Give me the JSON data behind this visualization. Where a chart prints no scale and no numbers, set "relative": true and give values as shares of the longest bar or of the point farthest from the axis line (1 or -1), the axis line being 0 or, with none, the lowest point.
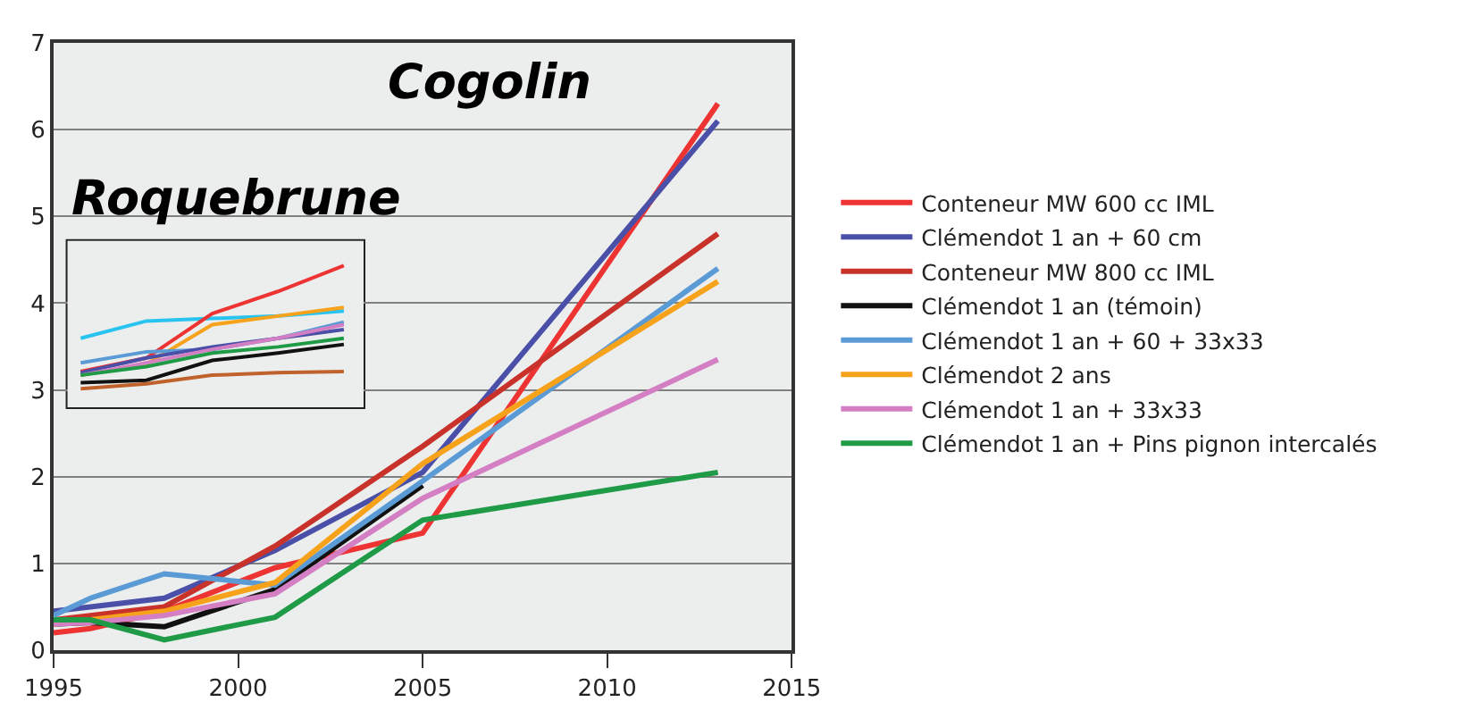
{
  "chart_data": [
    {
      "type": "line",
      "title": "Cogolin",
      "x": [
        1995,
        1996,
        1998,
        2001,
        2005,
        2013
      ],
      "xlim": [
        1995,
        2015
      ],
      "xticks": [
        1995,
        2000,
        2005,
        2010,
        2015
      ],
      "ylim": [
        0,
        7
      ],
      "yticks": [
        0,
        1,
        2,
        3,
        4,
        5,
        6,
        7
      ],
      "grid": "y",
      "legend": "right",
      "series": [
        {
          "name": "Conteneur MW 600 cc IML",
          "color": "#ee3333",
          "values": [
            0.2,
            0.25,
            0.45,
            0.95,
            1.35,
            6.3
          ]
        },
        {
          "name": "Clémendot 1 an + 60 cm",
          "color": "#4a4fa8",
          "values": [
            0.45,
            0.5,
            0.6,
            1.15,
            2.05,
            6.1
          ]
        },
        {
          "name": "Conteneur MW 800 cc IML",
          "color": "#c8322a",
          "values": [
            0.35,
            0.4,
            0.5,
            1.2,
            2.35,
            4.8
          ]
        },
        {
          "name": "Clémendot 1 an (témoin)",
          "color": "#111111",
          "values": [
            0.3,
            0.32,
            0.27,
            0.7,
            1.9,
            null
          ]
        },
        {
          "name": "Clémendot 1 an + 60 + 33x33",
          "color": "#5b9bd5",
          "values": [
            0.4,
            0.6,
            0.88,
            0.75,
            1.95,
            4.4
          ]
        },
        {
          "name": "Clémendot 2 ans",
          "color": "#f7a21b",
          "values": [
            0.3,
            0.35,
            0.45,
            0.78,
            2.15,
            4.25
          ]
        },
        {
          "name": "Clémendot 1 an + 33x33",
          "color": "#d47fc4",
          "values": [
            0.3,
            0.32,
            0.4,
            0.65,
            1.75,
            3.35
          ]
        },
        {
          "name": "Clémendot 1 an + Pins pignon intercalés",
          "color": "#1f9a46",
          "values": [
            0.35,
            0.35,
            0.12,
            0.38,
            1.5,
            2.05
          ]
        }
      ]
    },
    {
      "type": "line",
      "title": "Roquebrune",
      "relative": true,
      "categories": [
        null,
        null,
        null,
        null,
        null
      ],
      "series": [
        {
          "color": "#29c3f0",
          "values": [
            0.41,
            0.55,
            0.57,
            0.59,
            0.63
          ]
        },
        {
          "color": "#ee3333",
          "values": [
            0.14,
            0.25,
            0.61,
            0.79,
            1.0
          ]
        },
        {
          "color": "#f7a21b",
          "values": [
            0.11,
            0.2,
            0.52,
            0.59,
            0.66
          ]
        },
        {
          "color": "#5b9bd5",
          "values": [
            0.21,
            0.3,
            0.32,
            0.41,
            0.54
          ]
        },
        {
          "color": "#4a4fa8",
          "values": [
            0.13,
            0.25,
            0.34,
            0.41,
            0.48
          ]
        },
        {
          "color": "#d47fc4",
          "values": [
            0.11,
            0.21,
            0.32,
            0.41,
            0.52
          ]
        },
        {
          "color": "#1f9a46",
          "values": [
            0.11,
            0.18,
            0.29,
            0.34,
            0.41
          ]
        },
        {
          "color": "#111111",
          "values": [
            0.05,
            0.07,
            0.23,
            0.29,
            0.36
          ]
        },
        {
          "color": "#c0622c",
          "values": [
            0.0,
            0.04,
            0.11,
            0.13,
            0.14
          ]
        }
      ]
    }
  ]
}
